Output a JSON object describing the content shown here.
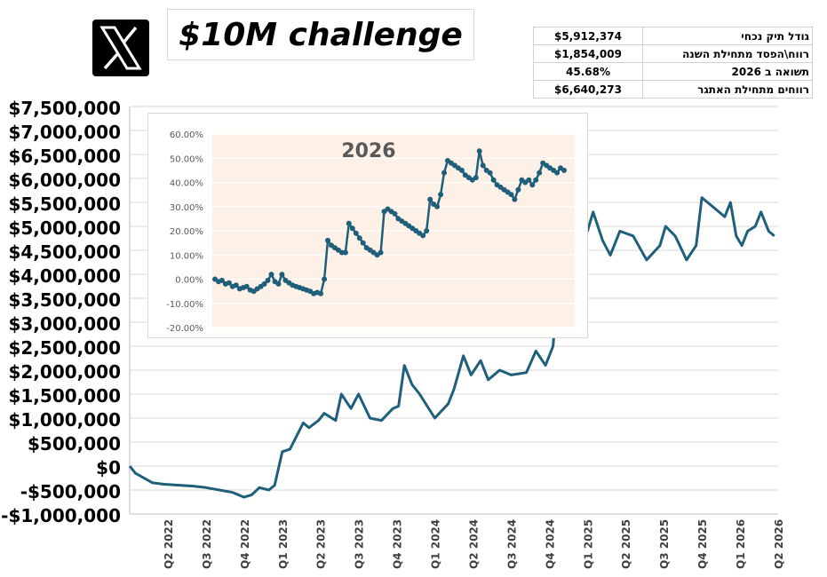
{
  "header": {
    "logo_icon": "x-logo-icon",
    "title": "$10M challenge"
  },
  "stats": [
    {
      "value": "$5,912,374",
      "label": "גודל תיק נכחי"
    },
    {
      "value": "$1,854,009",
      "label": "רווח\\הפסד מתחילת השנה"
    },
    {
      "value": "45.68%",
      "label": "תשואה ב 2026"
    },
    {
      "value": "$6,640,273",
      "label": "רווחים מתחילת האתגר"
    }
  ],
  "chart_data": [
    {
      "type": "line",
      "title": "",
      "xlabel": "",
      "ylabel": "",
      "ylim": [
        -1000000,
        7500000
      ],
      "y_ticks": [
        -1000000,
        -500000,
        0,
        500000,
        1000000,
        1500000,
        2000000,
        2500000,
        3000000,
        3500000,
        4000000,
        4500000,
        5000000,
        5500000,
        6000000,
        6500000,
        7000000,
        7500000
      ],
      "y_tick_labels": [
        "-$1,000,000",
        "-$500,000",
        "$0",
        "$500,000",
        "$1,000,000",
        "$1,500,000",
        "$2,000,000",
        "$2,500,000",
        "$3,000,000",
        "$3,500,000",
        "$4,000,000",
        "$4,500,000",
        "$5,000,000",
        "$5,500,000",
        "$6,000,000",
        "$6,500,000",
        "$7,000,000",
        "$7,500,000"
      ],
      "x_tick_labels": [
        "Q2 2022",
        "Q3 2022",
        "Q4 2022",
        "Q1 2023",
        "Q2 2023",
        "Q3 2023",
        "Q4 2023",
        "Q1 2024",
        "Q2 2024",
        "Q3 2024",
        "Q4 2024",
        "Q1 2025",
        "Q2 2025",
        "Q3 2025",
        "Q4 2025",
        "Q1 2026",
        "Q2 2026"
      ],
      "grid": true,
      "line_color": "#1f5f7a",
      "series": [
        {
          "x": [
            "Q1 2022",
            "Q2 2022",
            "Q2 2022",
            "Q3 2022",
            "Q3 2022",
            "Q4 2022",
            "Q4 2022",
            "Q1 2023",
            "Q1 2023",
            "Q1 2023",
            "Q2 2023",
            "Q2 2023",
            "Q2 2023",
            "Q2 2023",
            "Q3 2023",
            "Q3 2023",
            "Q3 2023",
            "Q3 2023",
            "Q3 2023",
            "Q4 2023",
            "Q4 2023",
            "Q4 2023",
            "Q4 2023",
            "Q1 2024",
            "Q1 2024",
            "Q1 2024",
            "Q1 2024",
            "Q2 2024",
            "Q2 2024",
            "Q2 2024",
            "Q2 2024",
            "Q2 2024",
            "Q3 2024",
            "Q3 2024",
            "Q3 2024",
            "Q3 2024",
            "Q4 2024",
            "Q4 2024",
            "Q4 2024",
            "Q4 2024",
            "Q1 2025",
            "Q1 2025",
            "Q1 2025",
            "Q1 2025",
            "Q1 2025",
            "Q2 2025",
            "Q2 2025",
            "Q2 2025",
            "Q2 2025",
            "Q2 2025",
            "Q3 2025",
            "Q3 2025",
            "Q3 2025",
            "Q3 2025",
            "Q4 2025",
            "Q4 2025",
            "Q4 2025",
            "Q4 2025",
            "Q4 2025",
            "Q1 2026",
            "Q1 2026",
            "Q1 2026",
            "Q1 2026",
            "Q1 2026",
            "Q2 2026",
            "Q2 2026",
            "Q2 2026",
            "Q2 2026"
          ],
          "t": [
            0.0,
            0.15,
            0.6,
            0.9,
            1.3,
            1.7,
            2.0,
            2.7,
            3.0,
            3.2,
            3.4,
            3.65,
            3.8,
            4.0,
            4.2,
            4.55,
            4.7,
            4.95,
            5.1,
            5.4,
            5.55,
            5.8,
            6.0,
            6.3,
            6.6,
            6.9,
            7.05,
            7.2,
            7.4,
            7.6,
            8.0,
            8.35,
            8.5,
            8.75,
            8.95,
            9.2,
            9.4,
            9.7,
            10.0,
            10.4,
            10.65,
            10.9,
            11.1,
            11.35,
            11.7,
            12.0,
            12.15,
            12.4,
            12.6,
            12.85,
            13.2,
            13.55,
            13.9,
            14.05,
            14.3,
            14.6,
            14.85,
            15.0,
            15.3,
            15.6,
            15.75,
            15.9,
            16.05,
            16.2,
            16.4,
            16.55,
            16.75,
            16.9
          ],
          "values": [
            0,
            -150000,
            -350000,
            -380000,
            -400000,
            -420000,
            -450000,
            -550000,
            -650000,
            -600000,
            -450000,
            -500000,
            -400000,
            300000,
            350000,
            900000,
            800000,
            950000,
            1100000,
            950000,
            1500000,
            1200000,
            1500000,
            1000000,
            950000,
            1200000,
            1250000,
            2100000,
            1700000,
            1500000,
            1000000,
            1300000,
            1600000,
            2300000,
            1900000,
            2200000,
            1800000,
            2000000,
            1900000,
            1950000,
            2400000,
            2100000,
            2500000,
            5000000,
            4800000,
            4900000,
            5300000,
            4700000,
            4400000,
            4900000,
            4800000,
            4300000,
            4600000,
            5000000,
            4800000,
            4300000,
            4600000,
            5600000,
            5400000,
            5200000,
            5500000,
            4800000,
            4600000,
            4900000,
            5000000,
            5300000,
            4900000,
            4800000
          ]
        }
      ]
    },
    {
      "type": "line",
      "title": "2026",
      "xlabel": "",
      "ylabel": "",
      "ylim": [
        -0.2,
        0.6
      ],
      "y_ticks": [
        -0.2,
        -0.1,
        0,
        0.1,
        0.2,
        0.3,
        0.4,
        0.5,
        0.6
      ],
      "y_tick_labels": [
        "-20.00%",
        "-10.00%",
        "0.00%",
        "10.00%",
        "20.00%",
        "30.00%",
        "40.00%",
        "50.00%",
        "60.00%"
      ],
      "grid": true,
      "plot_background": "#fdf0e7",
      "line_color": "#1f5f7a",
      "series": [
        {
          "x": [
            1,
            2,
            3,
            4,
            5,
            6,
            7,
            8,
            9,
            10,
            11,
            12,
            13,
            14,
            15,
            16,
            17,
            18,
            19,
            20,
            21,
            22,
            23,
            24,
            25,
            26,
            27,
            28,
            29,
            30,
            31,
            32,
            33,
            34,
            35,
            36,
            37,
            38,
            39,
            40,
            41,
            42,
            43,
            44,
            45,
            46,
            47,
            48,
            49,
            50,
            51,
            52,
            53,
            54,
            55,
            56,
            57,
            58,
            59,
            60,
            61,
            62,
            63,
            64,
            65,
            66,
            67,
            68,
            69,
            70,
            71,
            72,
            73,
            74,
            75,
            76,
            77,
            78,
            79,
            80,
            81,
            82,
            83,
            84,
            85,
            86,
            87,
            88,
            89,
            90,
            91,
            92,
            93,
            94,
            95,
            96,
            97,
            98,
            99,
            100
          ],
          "values": [
            0.0,
            -0.01,
            -0.005,
            -0.02,
            -0.015,
            -0.03,
            -0.025,
            -0.04,
            -0.035,
            -0.03,
            -0.045,
            -0.05,
            -0.04,
            -0.03,
            -0.02,
            -0.005,
            0.02,
            -0.01,
            -0.02,
            0.02,
            -0.005,
            -0.015,
            -0.025,
            -0.03,
            -0.035,
            -0.04,
            -0.045,
            -0.05,
            -0.06,
            -0.055,
            -0.06,
            0.0,
            0.16,
            0.14,
            0.13,
            0.12,
            0.11,
            0.11,
            0.23,
            0.21,
            0.19,
            0.17,
            0.15,
            0.13,
            0.12,
            0.11,
            0.1,
            0.11,
            0.28,
            0.29,
            0.28,
            0.27,
            0.25,
            0.24,
            0.23,
            0.22,
            0.21,
            0.2,
            0.19,
            0.18,
            0.2,
            0.33,
            0.31,
            0.3,
            0.35,
            0.44,
            0.49,
            0.48,
            0.47,
            0.46,
            0.45,
            0.43,
            0.42,
            0.41,
            0.42,
            0.53,
            0.47,
            0.45,
            0.44,
            0.41,
            0.39,
            0.38,
            0.37,
            0.36,
            0.35,
            0.33,
            0.37,
            0.41,
            0.4,
            0.41,
            0.39,
            0.41,
            0.44,
            0.48,
            0.47,
            0.46,
            0.45,
            0.44,
            0.46,
            0.45
          ]
        }
      ]
    }
  ]
}
